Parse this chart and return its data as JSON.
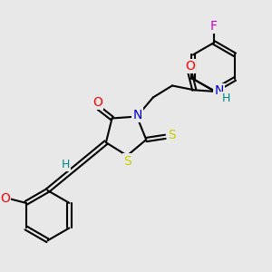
{
  "bg_color": "#e8e8e8",
  "atom_colors": {
    "O": "#ff0000",
    "N": "#0000cc",
    "S": "#cccc00",
    "F": "#cc00cc",
    "H": "#008888",
    "C": "#000000"
  },
  "font_size": 9,
  "bond_width": 1.5
}
